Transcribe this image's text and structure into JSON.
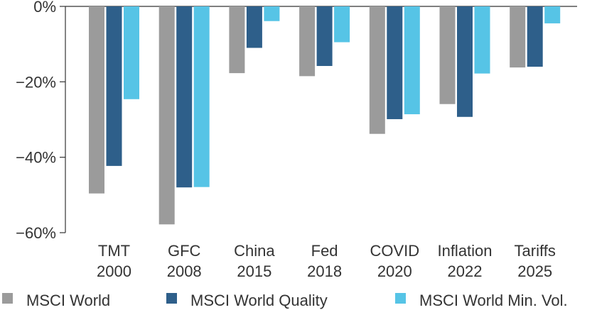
{
  "chart_data": {
    "type": "bar",
    "title": "",
    "xlabel": "",
    "ylabel": "",
    "categories": [
      [
        "TMT",
        "2000"
      ],
      [
        "GFC",
        "2008"
      ],
      [
        "China",
        "2015"
      ],
      [
        "Fed",
        "2018"
      ],
      [
        "COVID",
        "2020"
      ],
      [
        "Inflation",
        "2022"
      ],
      [
        "Tariffs",
        "2025"
      ]
    ],
    "series": [
      {
        "name": "MSCI World",
        "color": "#9b9b9b",
        "values": [
          -49.6,
          -57.8,
          -17.7,
          -18.5,
          -33.8,
          -25.9,
          -16.2
        ]
      },
      {
        "name": "MSCI World Quality",
        "color": "#2e5f8a",
        "values": [
          -42.3,
          -48.0,
          -11.0,
          -15.8,
          -29.9,
          -29.3,
          -16.0
        ]
      },
      {
        "name": "MSCI World Min. Vol.",
        "color": "#56c4e6",
        "values": [
          -24.6,
          -47.9,
          -3.9,
          -9.5,
          -28.6,
          -17.8,
          -4.5
        ]
      }
    ],
    "ylim": [
      -60,
      0
    ],
    "yticks": [
      0,
      -20,
      -40,
      -60
    ],
    "ytick_format": "percent",
    "grid": false,
    "legend_position": "bottom"
  }
}
